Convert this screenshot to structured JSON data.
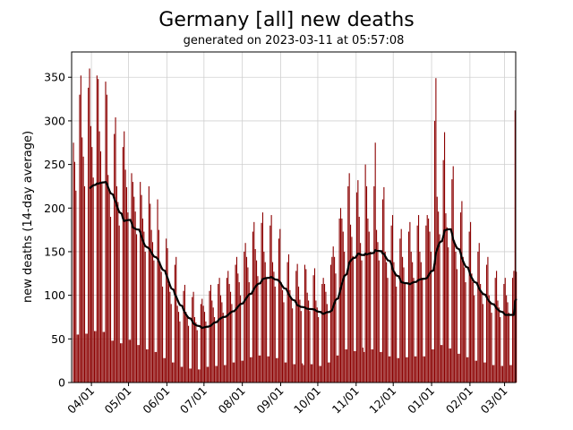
{
  "chart_data": {
    "type": "bar",
    "title": "Germany [all] new deaths",
    "subtitle": "generated on 2023-03-11 at 05:57:08",
    "xlabel": "",
    "ylabel": "new deaths (14-day average)",
    "start_date": "2022-03-17",
    "xlim": [
      "2022-03-16",
      "2023-03-10"
    ],
    "ylim": [
      0,
      379
    ],
    "yticks": [
      0,
      50,
      100,
      150,
      200,
      250,
      300,
      350
    ],
    "xticks": [
      {
        "date": "2022-04-01",
        "label": "04/01"
      },
      {
        "date": "2022-05-01",
        "label": "05/01"
      },
      {
        "date": "2022-06-01",
        "label": "06/01"
      },
      {
        "date": "2022-07-01",
        "label": "07/01"
      },
      {
        "date": "2022-08-01",
        "label": "08/01"
      },
      {
        "date": "2022-09-01",
        "label": "09/01"
      },
      {
        "date": "2022-10-01",
        "label": "10/01"
      },
      {
        "date": "2022-11-01",
        "label": "11/01"
      },
      {
        "date": "2022-12-01",
        "label": "12/01"
      },
      {
        "date": "2023-01-01",
        "label": "01/01"
      },
      {
        "date": "2023-02-01",
        "label": "02/01"
      },
      {
        "date": "2023-03-01",
        "label": "03/01"
      }
    ],
    "grid": true,
    "bar_color": "#8b0000",
    "line_color": "#000000",
    "rolling_window_days": 14,
    "daily_values": [
      275,
      253,
      220,
      55,
      55,
      330,
      352,
      281,
      259,
      225,
      56,
      56,
      338,
      360,
      294,
      270,
      235,
      59,
      59,
      352,
      348,
      288,
      265,
      230,
      58,
      58,
      345,
      330,
      238,
      219,
      190,
      48,
      48,
      285,
      304,
      225,
      207,
      180,
      45,
      45,
      270,
      288,
      244,
      224,
      195,
      49,
      49,
      240,
      230,
      213,
      196,
      170,
      43,
      43,
      230,
      215,
      188,
      173,
      150,
      38,
      38,
      225,
      205,
      175,
      161,
      140,
      35,
      35,
      210,
      175,
      138,
      127,
      110,
      28,
      28,
      165,
      154,
      113,
      104,
      90,
      23,
      23,
      135,
      144,
      88,
      81,
      70,
      18,
      18,
      105,
      112,
      81,
      75,
      65,
      16,
      16,
      98,
      104,
      75,
      69,
      60,
      15,
      15,
      90,
      96,
      88,
      81,
      70,
      18,
      18,
      105,
      112,
      94,
      86,
      75,
      19,
      19,
      113,
      120,
      100,
      92,
      80,
      20,
      20,
      120,
      128,
      113,
      104,
      90,
      23,
      23,
      135,
      144,
      125,
      115,
      100,
      25,
      25,
      150,
      160,
      144,
      132,
      115,
      29,
      29,
      173,
      184,
      153,
      140,
      122,
      31,
      31,
      183,
      195,
      150,
      138,
      120,
      30,
      30,
      180,
      192,
      138,
      127,
      110,
      28,
      28,
      165,
      176,
      115,
      106,
      92,
      23,
      23,
      138,
      147,
      106,
      98,
      85,
      21,
      21,
      128,
      136,
      110,
      95,
      82,
      22,
      20,
      135,
      130,
      103,
      94,
      82,
      21,
      21,
      123,
      131,
      94,
      86,
      75,
      19,
      19,
      113,
      120,
      113,
      104,
      90,
      23,
      23,
      135,
      144,
      156,
      144,
      125,
      31,
      31,
      188,
      200,
      188,
      173,
      150,
      38,
      38,
      225,
      240,
      181,
      167,
      145,
      36,
      36,
      218,
      232,
      190,
      160,
      140,
      40,
      35,
      250,
      225,
      188,
      173,
      150,
      38,
      38,
      225,
      275,
      175,
      161,
      140,
      35,
      35,
      210,
      224,
      150,
      138,
      120,
      30,
      30,
      180,
      192,
      138,
      127,
      110,
      28,
      28,
      165,
      176,
      144,
      132,
      115,
      29,
      29,
      173,
      184,
      150,
      138,
      120,
      30,
      30,
      180,
      192,
      150,
      138,
      120,
      30,
      30,
      180,
      192,
      188,
      173,
      150,
      38,
      38,
      300,
      349,
      213,
      196,
      170,
      43,
      43,
      255,
      287,
      194,
      178,
      155,
      39,
      39,
      233,
      248,
      163,
      150,
      130,
      33,
      33,
      195,
      208,
      144,
      132,
      115,
      29,
      29,
      173,
      184,
      125,
      115,
      100,
      25,
      25,
      150,
      160,
      113,
      104,
      90,
      23,
      23,
      135,
      144,
      100,
      92,
      80,
      20,
      20,
      120,
      128,
      94,
      86,
      75,
      19,
      19,
      113,
      120,
      100,
      92,
      80,
      20,
      20,
      120,
      128,
      312,
      127
    ]
  }
}
